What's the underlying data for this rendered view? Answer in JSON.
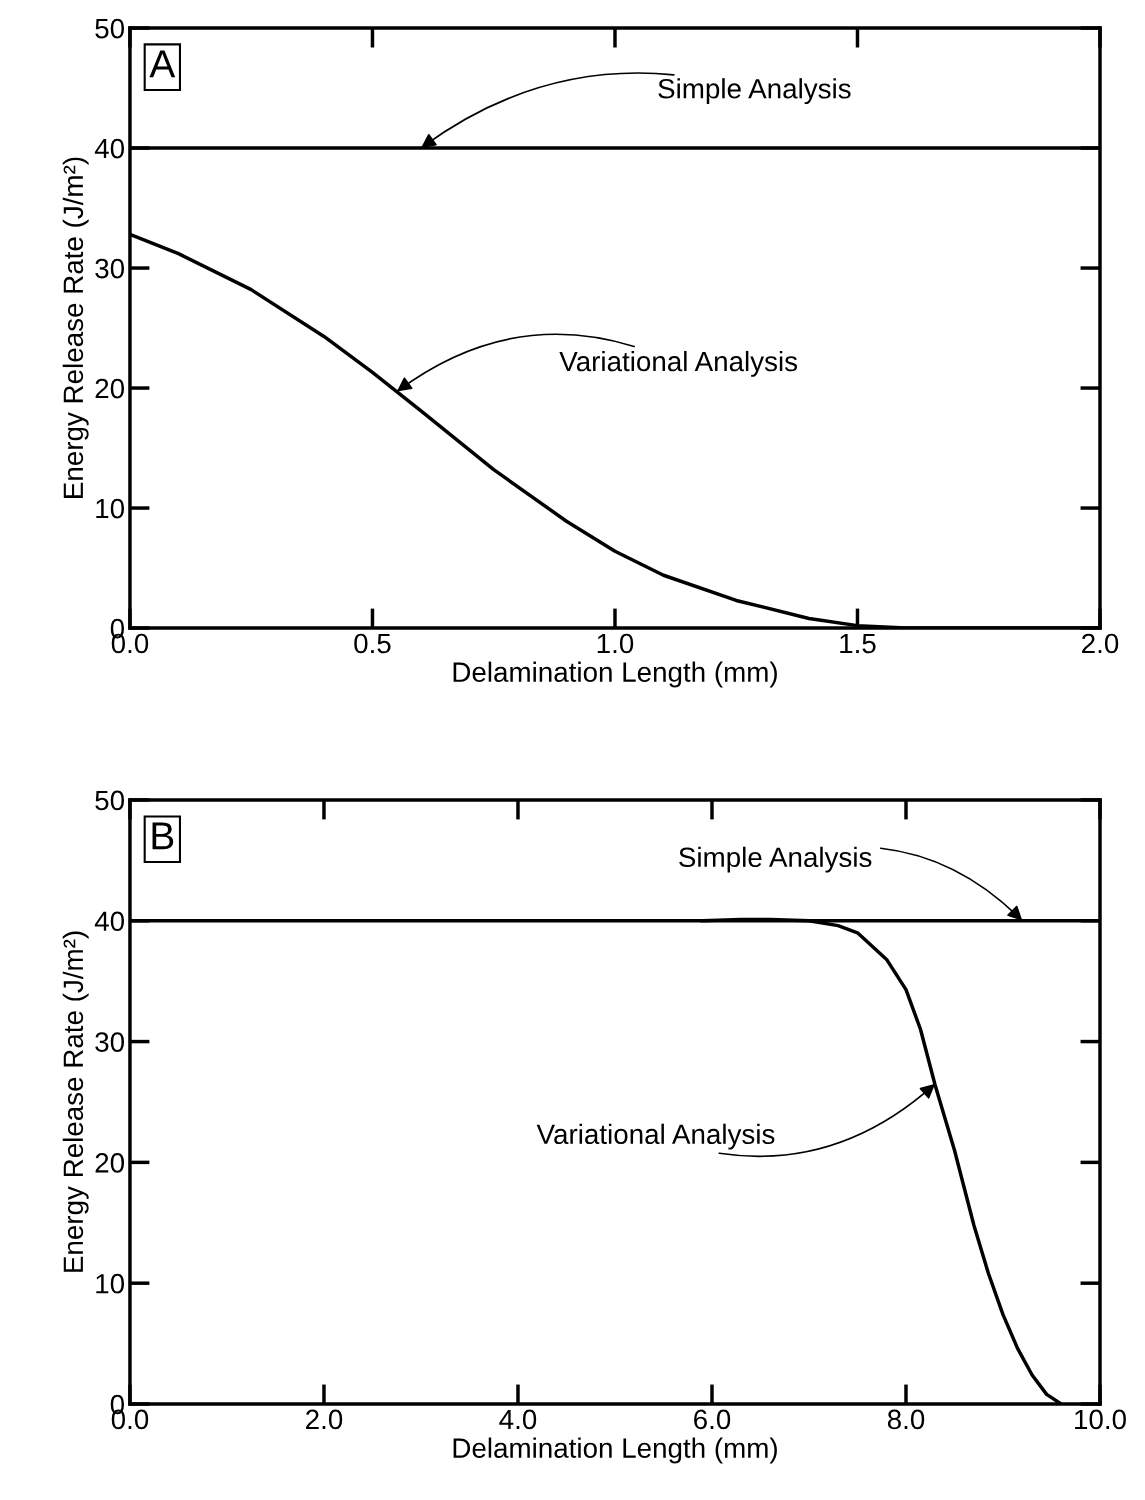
{
  "chart_data": [
    {
      "type": "line",
      "xlabel": "Delamination Length (mm)",
      "ylabel": "Energy Release Rate (J/m²)",
      "annotations": [
        "A",
        {
          "text": "Simple Analysis",
          "x": 0.6,
          "y": 40
        },
        {
          "text": "Variational Analysis",
          "x": 0.55,
          "y": 19.7
        }
      ],
      "series": [
        {
          "color": "#000000",
          "x": [
            0,
            2.0
          ],
          "values": [
            40,
            40
          ]
        },
        {
          "color": "#000000",
          "x": [
            0,
            0.1,
            0.25,
            0.4,
            0.5,
            0.55,
            0.6,
            0.75,
            0.9,
            1.0,
            1.1,
            1.25,
            1.4,
            1.5,
            1.6,
            1.8,
            2.0
          ],
          "values": [
            32.8,
            31.2,
            28.2,
            24.3,
            21.3,
            19.7,
            18.1,
            13.2,
            8.9,
            6.4,
            4.4,
            2.3,
            0.8,
            0.2,
            0,
            0,
            0
          ]
        }
      ],
      "xlim": [
        0,
        2.0
      ],
      "xticks": [
        {
          "value": 0,
          "label": "0.0"
        },
        {
          "value": 0.5,
          "label": "0.5"
        },
        {
          "value": 1.0,
          "label": "1.0"
        },
        {
          "value": 1.5,
          "label": "1.5"
        },
        {
          "value": 2.0,
          "label": "2.0"
        }
      ],
      "ylim": [
        0,
        50
      ],
      "yticks": [
        0,
        10,
        20,
        30,
        40,
        50
      ],
      "grid": false,
      "legend": false,
      "marker": "none",
      "line_style": "solid"
    },
    {
      "type": "line",
      "xlabel": "Delamination Length (mm)",
      "ylabel": "Energy Release Rate (J/m²)",
      "annotations": [
        "B",
        {
          "text": "Simple Analysis",
          "x": 9.2,
          "y": 40
        },
        {
          "text": "Variational Analysis",
          "x": 8.3,
          "y": 26.5
        }
      ],
      "series": [
        {
          "color": "#000000",
          "x": [
            0,
            10.0
          ],
          "values": [
            40,
            40
          ]
        },
        {
          "color": "#000000",
          "x": [
            5.9,
            6.3,
            6.6,
            7.0,
            7.3,
            7.5,
            7.8,
            8.0,
            8.15,
            8.3,
            8.5,
            8.7,
            8.85,
            9.0,
            9.15,
            9.3,
            9.45,
            9.6
          ],
          "values": [
            40,
            40.1,
            40.1,
            40,
            39.6,
            39.0,
            36.8,
            34.3,
            31.0,
            26.4,
            21.0,
            14.8,
            10.8,
            7.4,
            4.6,
            2.4,
            0.8,
            0
          ]
        }
      ],
      "xlim": [
        0,
        10.0
      ],
      "xticks": [
        {
          "value": 0,
          "label": "0.0"
        },
        {
          "value": 2,
          "label": "2.0"
        },
        {
          "value": 4,
          "label": "4.0"
        },
        {
          "value": 6,
          "label": "6.0"
        },
        {
          "value": 8,
          "label": "8.0"
        },
        {
          "value": 10,
          "label": "10.0"
        }
      ],
      "ylim": [
        0,
        50
      ],
      "yticks": [
        0,
        10,
        20,
        30,
        40,
        50
      ],
      "grid": false,
      "legend": false,
      "marker": "none",
      "line_style": "solid"
    }
  ]
}
